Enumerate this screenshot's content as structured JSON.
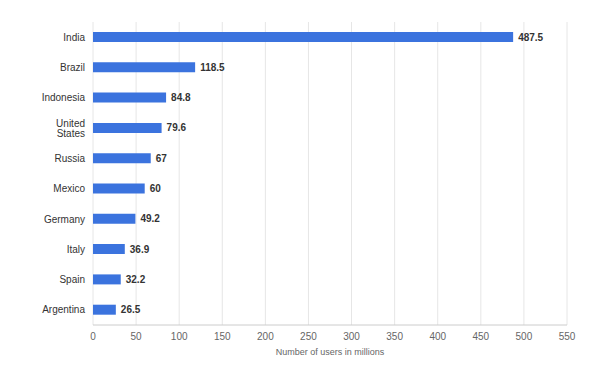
{
  "chart_data": {
    "type": "bar",
    "orientation": "horizontal",
    "x_label": "Number of users in millions",
    "categories": [
      "India",
      "Brazil",
      "Indonesia",
      "United States",
      "Russia",
      "Mexico",
      "Germany",
      "Italy",
      "Spain",
      "Argentina"
    ],
    "values": [
      487.5,
      118.5,
      84.8,
      79.6,
      67,
      60,
      49.2,
      36.9,
      32.2,
      26.5
    ],
    "color": "#3b73de",
    "xlim": [
      0,
      550
    ],
    "xticks": [
      0,
      50,
      100,
      150,
      200,
      250,
      300,
      350,
      400,
      450,
      500,
      550
    ],
    "grid": true,
    "data_labels": true
  }
}
